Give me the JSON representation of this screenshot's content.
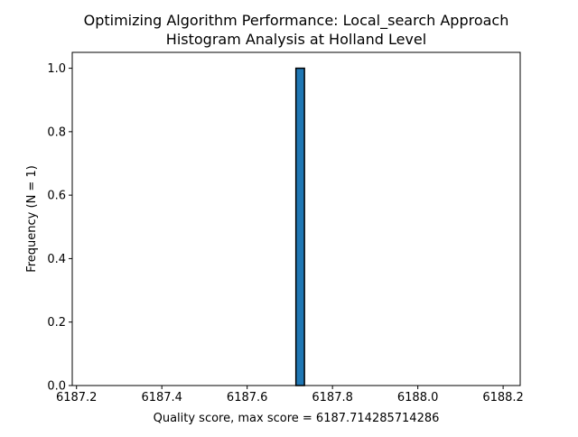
{
  "chart_data": {
    "type": "bar",
    "title_line1": "Optimizing Algorithm Performance: Local_search Approach",
    "title_line2": "Histogram Analysis at Holland Level",
    "xlabel": "Quality score, max score = 6187.714285714286",
    "ylabel": "Frequency (N = 1)",
    "xlim": [
      6187.19,
      6188.24
    ],
    "ylim": [
      0,
      1.05
    ],
    "x_ticks": [
      {
        "value": 6187.2,
        "label": "6187.2"
      },
      {
        "value": 6187.4,
        "label": "6187.4"
      },
      {
        "value": 6187.6,
        "label": "6187.6"
      },
      {
        "value": 6187.8,
        "label": "6187.8"
      },
      {
        "value": 6188.0,
        "label": "6188.0"
      },
      {
        "value": 6188.2,
        "label": "6188.2"
      }
    ],
    "y_ticks": [
      {
        "value": 0.0,
        "label": "0.0"
      },
      {
        "value": 0.2,
        "label": "0.2"
      },
      {
        "value": 0.4,
        "label": "0.4"
      },
      {
        "value": 0.6,
        "label": "0.6"
      },
      {
        "value": 0.8,
        "label": "0.8"
      },
      {
        "value": 1.0,
        "label": "1.0"
      }
    ],
    "bin_range": [
      6187.214285714286,
      6188.214285714286
    ],
    "bin_count": 50,
    "counts": [
      0,
      0,
      0,
      0,
      0,
      0,
      0,
      0,
      0,
      0,
      0,
      0,
      0,
      0,
      0,
      0,
      0,
      0,
      0,
      0,
      0,
      0,
      0,
      0,
      0,
      1,
      0,
      0,
      0,
      0,
      0,
      0,
      0,
      0,
      0,
      0,
      0,
      0,
      0,
      0,
      0,
      0,
      0,
      0,
      0,
      0,
      0,
      0,
      0,
      0
    ],
    "bar_color": "#1f77b4",
    "edge_color": "#000000",
    "grid": false,
    "legend": "none"
  }
}
